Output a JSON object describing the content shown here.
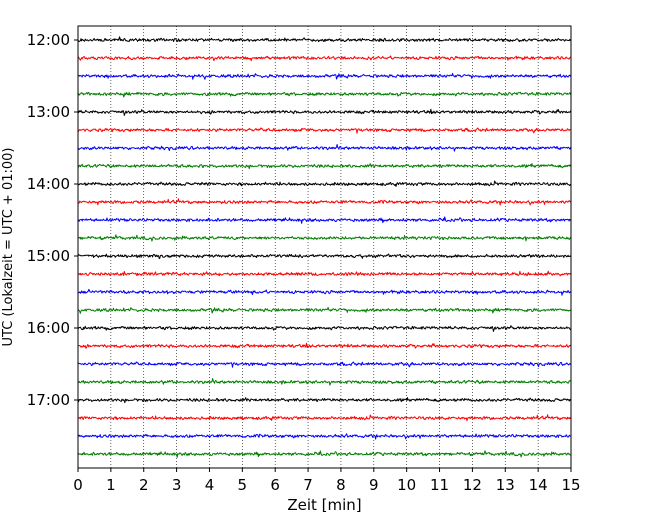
{
  "chart_data": {
    "type": "line",
    "title": "",
    "xlabel": "Zeit  [min]",
    "ylabel": "UTC (Lokalzeit = UTC + 01:00)",
    "xlim": [
      0,
      15
    ],
    "x_ticks": [
      0,
      1,
      2,
      3,
      4,
      5,
      6,
      7,
      8,
      9,
      10,
      11,
      12,
      13,
      14,
      15
    ],
    "x_tick_labels": [
      "0",
      "1",
      "2",
      "3",
      "4",
      "5",
      "6",
      "7",
      "8",
      "9",
      "10",
      "11",
      "12",
      "13",
      "14",
      "15"
    ],
    "y_tick_labels": [
      "12:00",
      "13:00",
      "14:00",
      "15:00",
      "16:00",
      "17:00"
    ],
    "grid": "vertical dotted",
    "trace_interval_minutes": 15,
    "traces": [
      {
        "start": "12:00",
        "color": "#000000"
      },
      {
        "start": "12:15",
        "color": "#ff0000"
      },
      {
        "start": "12:30",
        "color": "#0000ff"
      },
      {
        "start": "12:45",
        "color": "#007f00"
      },
      {
        "start": "13:00",
        "color": "#000000"
      },
      {
        "start": "13:15",
        "color": "#ff0000"
      },
      {
        "start": "13:30",
        "color": "#0000ff"
      },
      {
        "start": "13:45",
        "color": "#007f00"
      },
      {
        "start": "14:00",
        "color": "#000000"
      },
      {
        "start": "14:15",
        "color": "#ff0000"
      },
      {
        "start": "14:30",
        "color": "#0000ff"
      },
      {
        "start": "14:45",
        "color": "#007f00"
      },
      {
        "start": "15:00",
        "color": "#000000"
      },
      {
        "start": "15:15",
        "color": "#ff0000"
      },
      {
        "start": "15:30",
        "color": "#0000ff"
      },
      {
        "start": "15:45",
        "color": "#007f00"
      },
      {
        "start": "16:00",
        "color": "#000000"
      },
      {
        "start": "16:15",
        "color": "#ff0000"
      },
      {
        "start": "16:30",
        "color": "#0000ff"
      },
      {
        "start": "16:45",
        "color": "#007f00"
      },
      {
        "start": "17:00",
        "color": "#000000"
      },
      {
        "start": "17:15",
        "color": "#ff0000"
      },
      {
        "start": "17:30",
        "color": "#0000ff"
      },
      {
        "start": "17:45",
        "color": "#007f00"
      }
    ]
  }
}
